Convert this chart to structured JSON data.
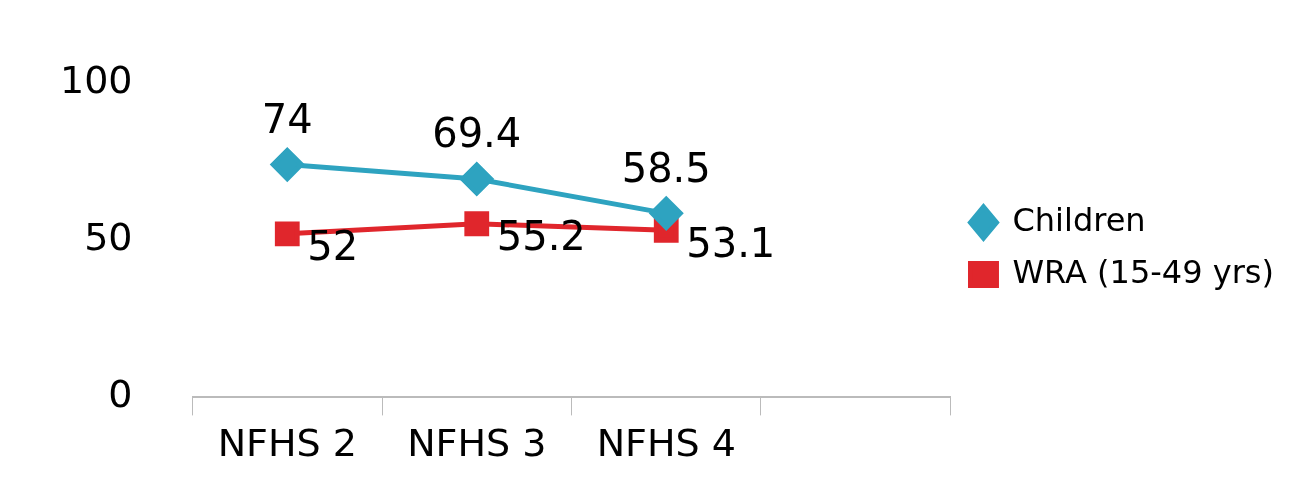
{
  "chart_data": {
    "type": "line",
    "categories": [
      "NFHS 2",
      "NFHS 3",
      "NFHS 4",
      null
    ],
    "series": [
      {
        "name": "Children",
        "color": "#2ea3c0",
        "marker": "diamond",
        "values": [
          74,
          69.4,
          58.5,
          null
        ]
      },
      {
        "name": "WRA (15-49 yrs)",
        "color": "#e0262c",
        "marker": "square",
        "values": [
          52,
          55.2,
          53.1,
          null
        ]
      }
    ],
    "ylim": [
      0,
      100
    ],
    "yticks": [
      0,
      50,
      100
    ],
    "grid": false,
    "legend": "right",
    "data_labels": true
  }
}
